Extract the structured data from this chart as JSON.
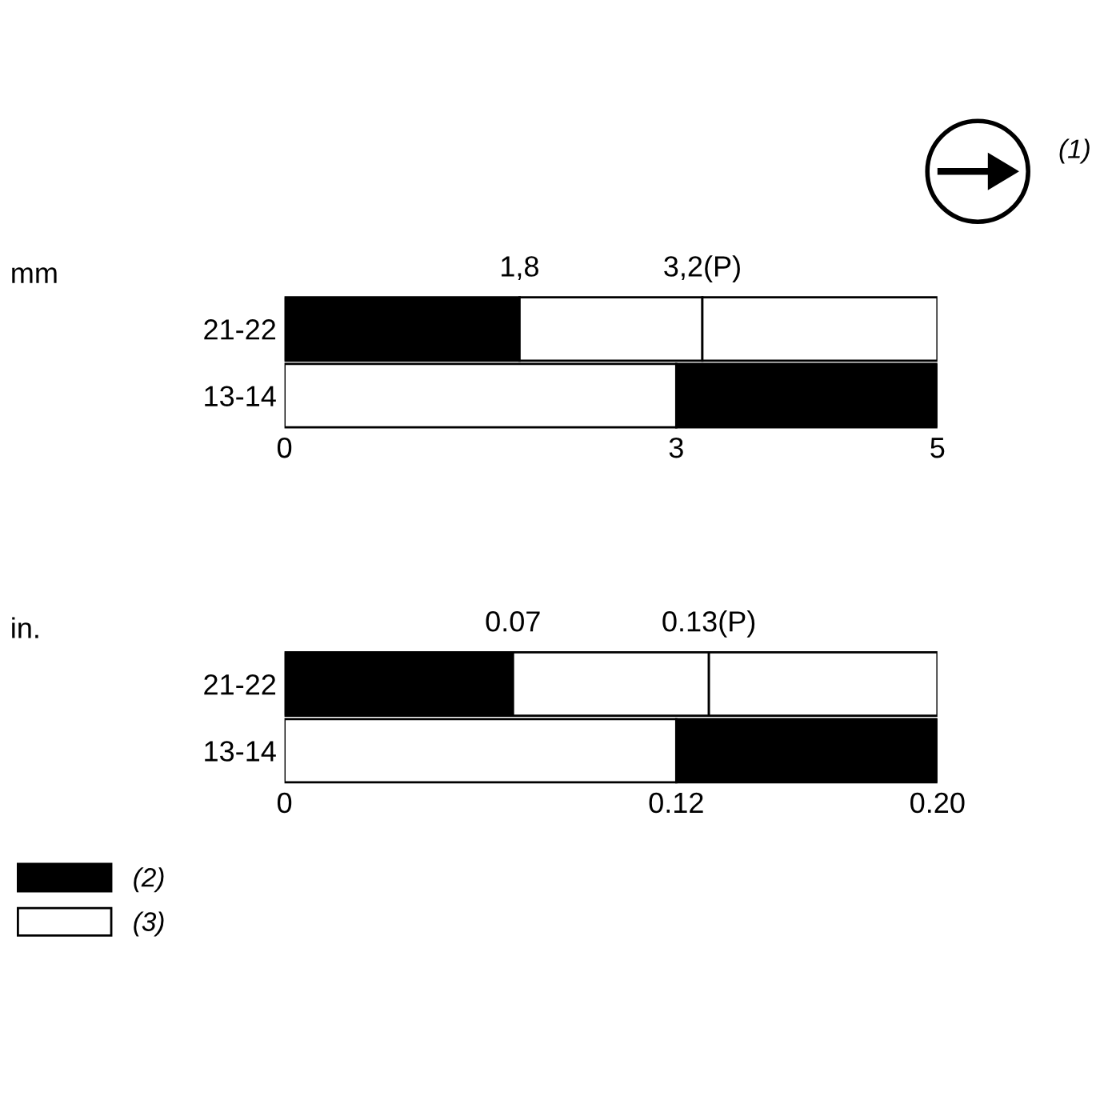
{
  "chart_data": [
    {
      "type": "bar",
      "orientation": "horizontal",
      "ylabel": "mm",
      "categories": [
        "21-22",
        "13-14"
      ],
      "series": [
        {
          "color": "#000000",
          "base": [
            0,
            3
          ],
          "values": [
            1.8,
            2
          ]
        },
        {
          "color": "#ffffff",
          "base": [
            1.8,
            0
          ],
          "values": [
            1.4,
            3
          ]
        },
        {
          "color": "#ffffff",
          "base": [
            3.2,
            null
          ],
          "values": [
            1.8,
            null
          ]
        }
      ],
      "xlim": [
        0,
        5
      ],
      "xticks": [
        0,
        3,
        5
      ],
      "x2lim": [
        0,
        5
      ],
      "x2ticks": [
        {
          "value": 1.8,
          "label": "1,8"
        },
        {
          "value": 3.2,
          "label": "3,2(P)"
        }
      ],
      "annotations": [
        "(1)"
      ],
      "legend": false
    },
    {
      "type": "bar",
      "orientation": "horizontal",
      "ylabel": "in.",
      "categories": [
        "21-22",
        "13-14"
      ],
      "series": [
        {
          "name": "(2)",
          "color": "#000000",
          "base": [
            0,
            0.12
          ],
          "values": [
            0.07,
            0.08
          ]
        },
        {
          "name": "(3)",
          "color": "#ffffff",
          "base": [
            0.07,
            0
          ],
          "values": [
            0.06,
            0.12
          ]
        },
        {
          "color": "#ffffff",
          "base": [
            0.13,
            null
          ],
          "values": [
            0.07,
            null
          ]
        }
      ],
      "xlim": [
        0,
        0.2
      ],
      "xticks": [
        0,
        {
          "value": 0.12,
          "label": "0.12"
        },
        {
          "value": 0.2,
          "label": "0.20"
        }
      ],
      "x2lim": [
        0,
        0.2
      ],
      "x2ticks": [
        {
          "value": 0.07,
          "label": "0.07"
        },
        {
          "value": 0.13,
          "label": "0.13(P)"
        }
      ],
      "legend": "bottom left"
    }
  ]
}
